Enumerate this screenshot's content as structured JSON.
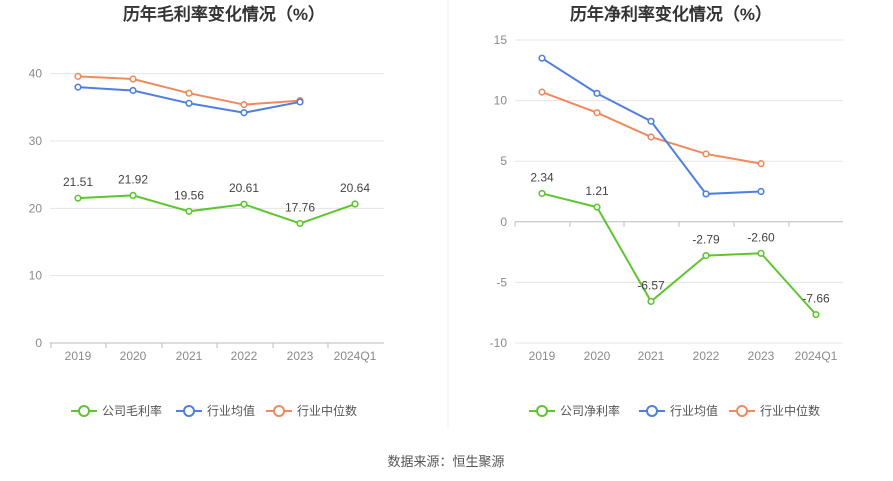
{
  "source_label": "数据来源：恒生聚源",
  "colors": {
    "company": "#5ec531",
    "avg": "#4f7fe0",
    "median": "#f08a5d",
    "grid": "#e5e5e5",
    "axis": "#bbbbbb"
  },
  "chart_data": [
    {
      "type": "line",
      "title": "历年毛利率变化情况（%）",
      "categories": [
        "2019",
        "2020",
        "2021",
        "2022",
        "2023",
        "2024Q1"
      ],
      "ylim": [
        0,
        45
      ],
      "yticks": [
        "0",
        "10",
        "20",
        "30",
        "40"
      ],
      "grid": true,
      "legend_position": "bottom",
      "series": [
        {
          "name": "公司毛利率",
          "key": "company",
          "values": [
            21.51,
            21.92,
            19.56,
            20.61,
            17.76,
            20.64
          ],
          "labels": [
            "21.51",
            "21.92",
            "19.56",
            "20.61",
            "17.76",
            "20.64"
          ]
        },
        {
          "name": "行业均值",
          "key": "avg",
          "values": [
            38.0,
            37.5,
            35.6,
            34.2,
            35.8,
            null
          ]
        },
        {
          "name": "行业中位数",
          "key": "median",
          "values": [
            39.6,
            39.2,
            37.1,
            35.4,
            36.0,
            null
          ]
        }
      ]
    },
    {
      "type": "line",
      "title": "历年净利率变化情况（%）",
      "categories": [
        "2019",
        "2020",
        "2021",
        "2022",
        "2023",
        "2024Q1"
      ],
      "ylim": [
        -10,
        15
      ],
      "yticks": [
        "-10",
        "-5",
        "0",
        "5",
        "10",
        "15"
      ],
      "grid": true,
      "legend_position": "bottom",
      "series": [
        {
          "name": "公司净利率",
          "key": "company",
          "values": [
            2.34,
            1.21,
            -6.57,
            -2.79,
            -2.6,
            -7.66
          ],
          "labels": [
            "2.34",
            "1.21",
            "-6.57",
            "-2.79",
            "-2.60",
            "-7.66"
          ]
        },
        {
          "name": "行业均值",
          "key": "avg",
          "values": [
            13.5,
            10.6,
            8.3,
            2.3,
            2.5,
            null
          ]
        },
        {
          "name": "行业中位数",
          "key": "median",
          "values": [
            10.7,
            9.0,
            7.0,
            5.6,
            4.8,
            null
          ]
        }
      ]
    }
  ]
}
